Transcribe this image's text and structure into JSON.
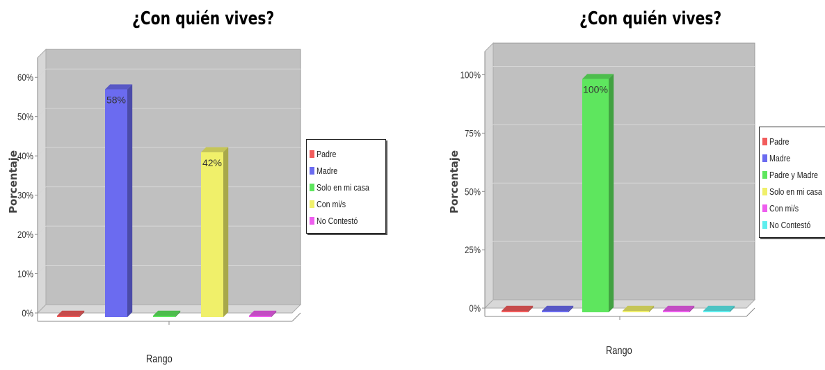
{
  "chart_data": [
    {
      "type": "bar",
      "title": "¿Con quién vives?",
      "xlabel": "Rango",
      "ylabel": "Porcentaje",
      "ylim": [
        0,
        65
      ],
      "yticks": [
        0,
        10,
        20,
        30,
        40,
        50,
        60
      ],
      "ytick_labels": [
        "0%",
        "10%",
        "20%",
        "30%",
        "40%",
        "50%",
        "60%"
      ],
      "grid": true,
      "legend_position": "right",
      "categories": [
        "Padre",
        "Madre",
        "Solo en mi casa",
        "Con mi/s",
        "No Contestó"
      ],
      "series": [
        {
          "name": "Padre",
          "value": 0,
          "color": "#f25c5c",
          "label": ""
        },
        {
          "name": "Madre",
          "value": 58,
          "color": "#6b6bf0",
          "label": "58%"
        },
        {
          "name": "Solo en mi casa",
          "value": 0,
          "color": "#5ee65e",
          "label": ""
        },
        {
          "name": "Con mi/s",
          "value": 42,
          "color": "#f0f06a",
          "label": "42%"
        },
        {
          "name": "No Contestó",
          "value": 0,
          "color": "#ee5eee",
          "label": ""
        }
      ]
    },
    {
      "type": "bar",
      "title": "¿Con quién vives?",
      "xlabel": "Rango",
      "ylabel": "Porcentaje",
      "ylim": [
        0,
        110
      ],
      "yticks": [
        0,
        25,
        50,
        75,
        100
      ],
      "ytick_labels": [
        "0%",
        "25%",
        "50%",
        "75%",
        "100%"
      ],
      "grid": true,
      "legend_position": "right",
      "categories": [
        "Padre",
        "Madre",
        "Padre y Madre",
        "Solo en mi casa",
        "Con mi/s",
        "No Contestó"
      ],
      "series": [
        {
          "name": "Padre",
          "value": 0,
          "color": "#f25c5c",
          "label": ""
        },
        {
          "name": "Madre",
          "value": 0,
          "color": "#6b6bf0",
          "label": ""
        },
        {
          "name": "Padre y Madre",
          "value": 100,
          "color": "#5ee65e",
          "label": "100%"
        },
        {
          "name": "Solo en mi casa",
          "value": 0,
          "color": "#f0f06a",
          "label": ""
        },
        {
          "name": "Con mi/s",
          "value": 0,
          "color": "#ee5eee",
          "label": ""
        },
        {
          "name": "No Contestó",
          "value": 0,
          "color": "#5eeeee",
          "label": ""
        }
      ]
    }
  ]
}
